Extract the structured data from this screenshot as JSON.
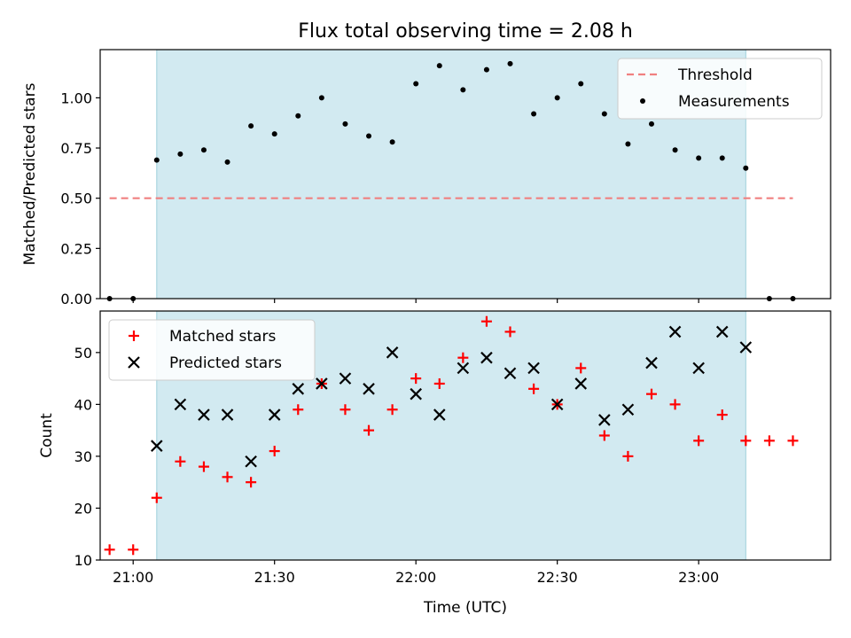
{
  "title": "Flux total observing time = 2.08 h",
  "chart_data": [
    {
      "type": "scatter",
      "ylabel": "Matched/Predicted stars",
      "ylim": [
        0,
        1.24
      ],
      "yticks": [
        "0.00",
        "0.25",
        "0.50",
        "0.75",
        "1.00"
      ],
      "ytick_values": [
        0,
        0.25,
        0.5,
        0.75,
        1.0
      ],
      "xlim": [
        "20:53",
        "23:28"
      ],
      "shaded_span": [
        "21:05",
        "23:10"
      ],
      "threshold": {
        "value": 0.5,
        "x_from": "20:55",
        "x_to": "23:20",
        "color": "#f08080"
      },
      "legend": {
        "position": "top-right",
        "entries": [
          "Threshold",
          "Measurements"
        ]
      },
      "series": [
        {
          "name": "Measurements",
          "marker": "dot",
          "color": "#000000",
          "points": [
            [
              "20:55",
              0.0
            ],
            [
              "21:00",
              0.0
            ],
            [
              "21:05",
              0.69
            ],
            [
              "21:10",
              0.72
            ],
            [
              "21:15",
              0.74
            ],
            [
              "21:20",
              0.68
            ],
            [
              "21:25",
              0.86
            ],
            [
              "21:30",
              0.82
            ],
            [
              "21:35",
              0.91
            ],
            [
              "21:40",
              1.0
            ],
            [
              "21:45",
              0.87
            ],
            [
              "21:50",
              0.81
            ],
            [
              "21:55",
              0.78
            ],
            [
              "22:00",
              1.07
            ],
            [
              "22:05",
              1.16
            ],
            [
              "22:10",
              1.04
            ],
            [
              "22:15",
              1.14
            ],
            [
              "22:20",
              1.17
            ],
            [
              "22:25",
              0.92
            ],
            [
              "22:30",
              1.0
            ],
            [
              "22:35",
              1.07
            ],
            [
              "22:40",
              0.92
            ],
            [
              "22:45",
              0.77
            ],
            [
              "22:50",
              0.87
            ],
            [
              "22:55",
              0.74
            ],
            [
              "23:00",
              0.7
            ],
            [
              "23:05",
              0.7
            ],
            [
              "23:10",
              0.65
            ],
            [
              "23:15",
              0.0
            ],
            [
              "23:20",
              0.0
            ]
          ]
        }
      ]
    },
    {
      "type": "scatter",
      "xlabel": "Time (UTC)",
      "ylabel": "Count",
      "ylim": [
        10,
        58
      ],
      "yticks": [
        "10",
        "20",
        "30",
        "40",
        "50"
      ],
      "ytick_values": [
        10,
        20,
        30,
        40,
        50
      ],
      "xlim": [
        "20:53",
        "23:28"
      ],
      "xticks": [
        "21:00",
        "21:30",
        "22:00",
        "22:30",
        "23:00"
      ],
      "shaded_span": [
        "21:05",
        "23:10"
      ],
      "legend": {
        "position": "top-left",
        "entries": [
          "Matched stars",
          "Predicted stars"
        ]
      },
      "series": [
        {
          "name": "Matched stars",
          "marker": "plus",
          "color": "#ff0000",
          "points": [
            [
              "20:55",
              12
            ],
            [
              "21:00",
              12
            ],
            [
              "21:05",
              22
            ],
            [
              "21:10",
              29
            ],
            [
              "21:15",
              28
            ],
            [
              "21:20",
              26
            ],
            [
              "21:25",
              25
            ],
            [
              "21:30",
              31
            ],
            [
              "21:35",
              39
            ],
            [
              "21:40",
              44
            ],
            [
              "21:45",
              39
            ],
            [
              "21:50",
              35
            ],
            [
              "21:55",
              39
            ],
            [
              "22:00",
              45
            ],
            [
              "22:05",
              44
            ],
            [
              "22:10",
              49
            ],
            [
              "22:15",
              56
            ],
            [
              "22:20",
              54
            ],
            [
              "22:25",
              43
            ],
            [
              "22:30",
              40
            ],
            [
              "22:35",
              47
            ],
            [
              "22:40",
              34
            ],
            [
              "22:45",
              30
            ],
            [
              "22:50",
              42
            ],
            [
              "22:55",
              40
            ],
            [
              "23:00",
              33
            ],
            [
              "23:05",
              38
            ],
            [
              "23:10",
              33
            ],
            [
              "23:15",
              33
            ],
            [
              "23:20",
              33
            ]
          ]
        },
        {
          "name": "Predicted stars",
          "marker": "x",
          "color": "#000000",
          "points": [
            [
              "21:05",
              32
            ],
            [
              "21:10",
              40
            ],
            [
              "21:15",
              38
            ],
            [
              "21:20",
              38
            ],
            [
              "21:25",
              29
            ],
            [
              "21:30",
              38
            ],
            [
              "21:35",
              43
            ],
            [
              "21:40",
              44
            ],
            [
              "21:45",
              45
            ],
            [
              "21:50",
              43
            ],
            [
              "21:55",
              50
            ],
            [
              "22:00",
              42
            ],
            [
              "22:05",
              38
            ],
            [
              "22:10",
              47
            ],
            [
              "22:15",
              49
            ],
            [
              "22:20",
              46
            ],
            [
              "22:25",
              47
            ],
            [
              "22:30",
              40
            ],
            [
              "22:35",
              44
            ],
            [
              "22:40",
              37
            ],
            [
              "22:45",
              39
            ],
            [
              "22:50",
              48
            ],
            [
              "22:55",
              54
            ],
            [
              "23:00",
              47
            ],
            [
              "23:05",
              54
            ],
            [
              "23:10",
              51
            ]
          ]
        }
      ]
    }
  ],
  "colors": {
    "shade": "#add8e6",
    "shade_edge": "#9fd0dc"
  }
}
